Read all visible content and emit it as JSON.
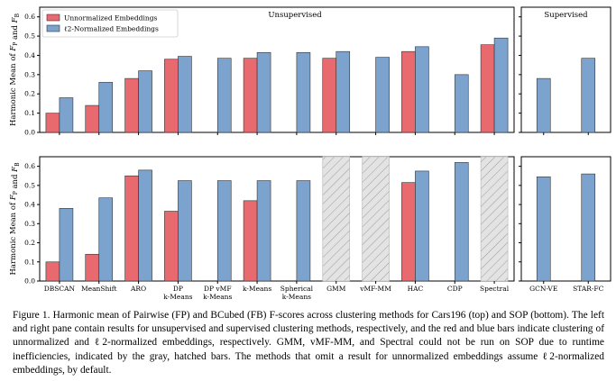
{
  "chart_data": {
    "type": "bar",
    "ylabel": "Harmonic Mean of F_P and F_B",
    "ylim": [
      0,
      0.65
    ],
    "yticks": [
      "0.0",
      "0.1",
      "0.2",
      "0.3",
      "0.4",
      "0.5",
      "0.6"
    ],
    "legend": {
      "placement": "top-left",
      "entries": [
        "Unnormalized Embeddings",
        "ℓ2-Normalized Embeddings"
      ]
    },
    "colors": {
      "unnormalized": "#e8696e",
      "normalized": "#7ba3cd",
      "hatched": "#e3e3e3"
    },
    "pane_titles": {
      "unsupervised": "Unsupervised",
      "supervised": "Supervised"
    },
    "unsupervised_categories": [
      "DBSCAN",
      "MeanShift",
      "ARO",
      "DP\nk-Means",
      "DP vMF\nk-Means",
      "k-Means",
      "Spherical\nk-Means",
      "GMM",
      "vMF-MM",
      "HAC",
      "CDP",
      "Spectral"
    ],
    "supervised_categories": [
      "GCN-VE",
      "STAR-FC"
    ],
    "rows": [
      {
        "dataset": "Cars196",
        "unsupervised": {
          "unnormalized": [
            0.1,
            0.14,
            0.28,
            0.38,
            null,
            0.385,
            null,
            0.385,
            null,
            0.42,
            null,
            0.455
          ],
          "normalized": [
            0.18,
            0.26,
            0.32,
            0.395,
            0.385,
            0.415,
            0.415,
            0.42,
            0.39,
            0.445,
            0.3,
            0.49
          ],
          "unavailable": []
        },
        "supervised": {
          "normalized": [
            0.28,
            0.385
          ]
        }
      },
      {
        "dataset": "SOP",
        "unsupervised": {
          "unnormalized": [
            0.1,
            0.14,
            0.55,
            0.365,
            null,
            0.42,
            null,
            null,
            null,
            0.515,
            null,
            null
          ],
          "normalized": [
            0.38,
            0.435,
            0.58,
            0.525,
            0.525,
            0.525,
            0.525,
            null,
            null,
            0.575,
            0.62,
            null
          ],
          "unavailable": [
            7,
            8,
            11
          ]
        },
        "supervised": {
          "normalized": [
            0.545,
            0.56
          ]
        }
      }
    ]
  },
  "caption": {
    "label": "Figure 1.",
    "text": "Harmonic mean of Pairwise (FP) and BCubed (FB) F-scores across clustering methods for Cars196 (top) and SOP (bottom). The left and right pane contain results for unsupervised and supervised clustering methods, respectively, and the red and blue bars indicate clustering of unnormalized and ℓ2-normalized embeddings, respectively. GMM, vMF-MM, and Spectral could not be run on SOP due to runtime inefficiencies, indicated by the gray, hatched bars. The methods that omit a result for unnormalized embeddings assume ℓ2-normalized embeddings, by default."
  }
}
